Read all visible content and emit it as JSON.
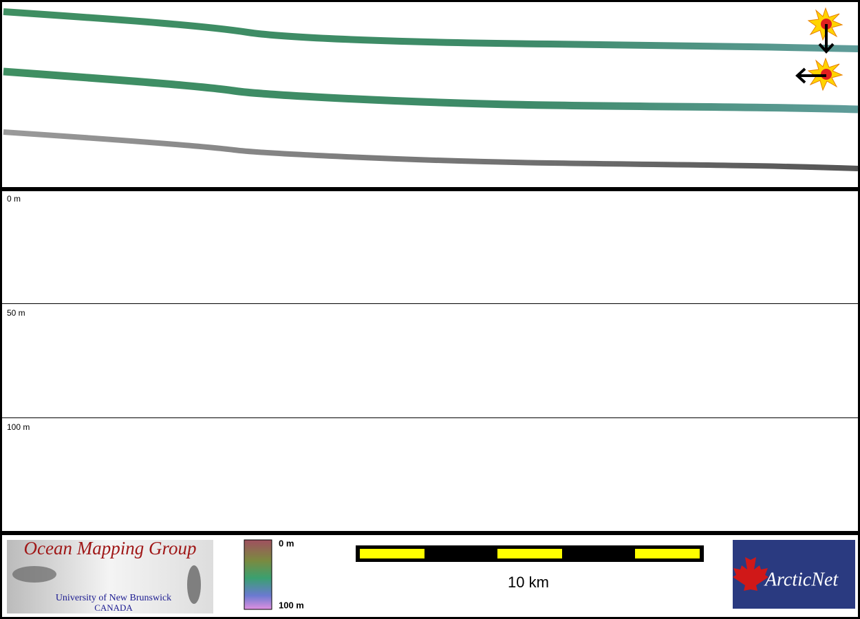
{
  "profile": {
    "depth_labels": [
      "0 m",
      "50 m",
      "100 m"
    ]
  },
  "footer": {
    "logo": {
      "title": "Ocean Mapping Group",
      "university": "University of New Brunswick",
      "country": "CANADA"
    },
    "color_scale": {
      "top": "0 m",
      "bottom": "100 m"
    },
    "scale_bar": {
      "label": "10 km"
    },
    "partner": "ArcticNet"
  }
}
